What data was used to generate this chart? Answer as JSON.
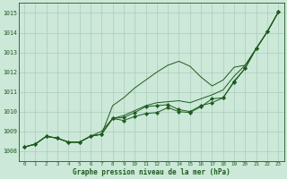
{
  "title": "Graphe pression niveau de la mer (hPa)",
  "background_color": "#cce8d8",
  "grid_color": "#aaccbc",
  "line_color": "#1e5c1e",
  "ylim": [
    1007.5,
    1015.5
  ],
  "xlim": [
    -0.5,
    23.5
  ],
  "yticks": [
    1008,
    1009,
    1010,
    1011,
    1012,
    1013,
    1014,
    1015
  ],
  "x_labels": [
    "0",
    "1",
    "2",
    "3",
    "4",
    "5",
    "6",
    "7",
    "8",
    "9",
    "10",
    "11",
    "12",
    "13",
    "14",
    "15",
    "16",
    "17",
    "18",
    "19",
    "20",
    "21",
    "22",
    "23"
  ],
  "line_top_smooth": [
    1008.2,
    1008.35,
    1008.75,
    1008.65,
    1008.45,
    1008.45,
    1008.75,
    1009.0,
    1009.65,
    1009.8,
    1010.05,
    1010.3,
    1010.45,
    1010.5,
    1010.55,
    1010.45,
    1010.65,
    1010.85,
    1011.1,
    1011.8,
    1012.35,
    1013.2,
    1014.05,
    1015.05
  ],
  "line_diverge": [
    1008.2,
    1008.35,
    1008.75,
    1008.65,
    1008.45,
    1008.45,
    1008.75,
    1008.85,
    1010.3,
    1010.7,
    1011.2,
    1011.6,
    1012.0,
    1012.35,
    1012.55,
    1012.3,
    1011.75,
    1011.3,
    1011.6,
    1012.25,
    1012.35,
    1013.2,
    1014.05,
    1015.05
  ],
  "line_mid_markers": [
    1008.2,
    1008.35,
    1008.75,
    1008.65,
    1008.45,
    1008.45,
    1008.75,
    1008.85,
    1009.65,
    1009.7,
    1009.95,
    1010.25,
    1010.3,
    1010.35,
    1010.1,
    1010.0,
    1010.3,
    1010.45,
    1010.7,
    1011.55,
    1012.2,
    1013.2,
    1014.05,
    1015.05
  ],
  "line_low_markers": [
    1008.2,
    1008.35,
    1008.75,
    1008.65,
    1008.45,
    1008.45,
    1008.75,
    1008.85,
    1009.65,
    1009.55,
    1009.75,
    1009.9,
    1009.95,
    1010.2,
    1010.0,
    1009.95,
    1010.25,
    1010.65,
    1010.7,
    1011.5,
    1012.2,
    1013.2,
    1014.05,
    1015.05
  ]
}
